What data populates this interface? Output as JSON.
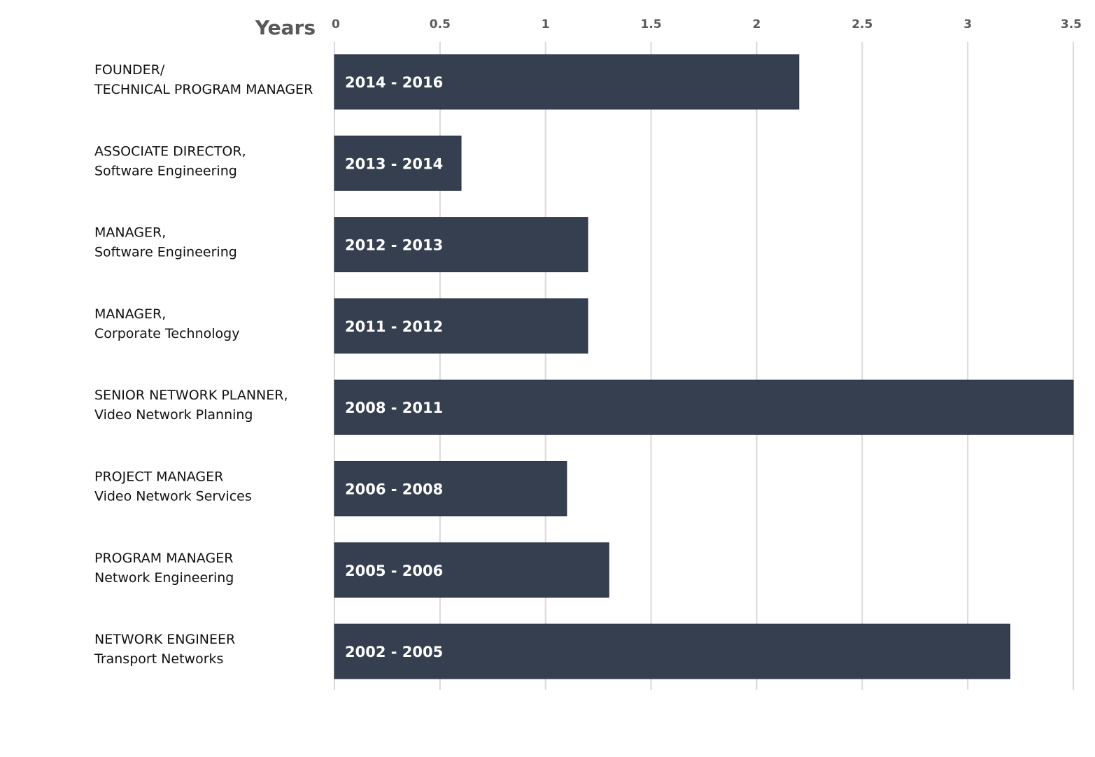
{
  "chart_data": {
    "type": "bar",
    "orientation": "horizontal",
    "xlabel": "Years",
    "xlim": [
      0,
      3.5
    ],
    "xticks": [
      "0",
      "0.5",
      "1",
      "1.5",
      "2",
      "2.5",
      "3",
      "3.5"
    ],
    "grid": true,
    "bar_color": "#353f4f",
    "grid_color": "#d9d9d9",
    "categories": [
      {
        "line1": "FOUNDER/",
        "line2": "TECHNICAL PROGRAM MANAGER"
      },
      {
        "line1": "ASSOCIATE DIRECTOR,",
        "line2": "Software Engineering"
      },
      {
        "line1": "MANAGER,",
        "line2": "Software Engineering"
      },
      {
        "line1": "MANAGER,",
        "line2": "Corporate Technology"
      },
      {
        "line1": "SENIOR NETWORK PLANNER,",
        "line2": "Video Network Planning"
      },
      {
        "line1": "PROJECT MANAGER",
        "line2": "Video Network Services"
      },
      {
        "line1": "PROGRAM MANAGER",
        "line2": "Network Engineering"
      },
      {
        "line1": "NETWORK ENGINEER",
        "line2": "Transport Networks"
      }
    ],
    "values": [
      2.2,
      0.6,
      1.2,
      1.2,
      3.5,
      1.1,
      1.3,
      3.2
    ],
    "data_labels": [
      "2014 - 2016",
      "2013 - 2014",
      "2012 - 2013",
      "2011 - 2012",
      "2008 - 2011",
      "2006 - 2008",
      "2005 - 2006",
      "2002 - 2005"
    ]
  }
}
